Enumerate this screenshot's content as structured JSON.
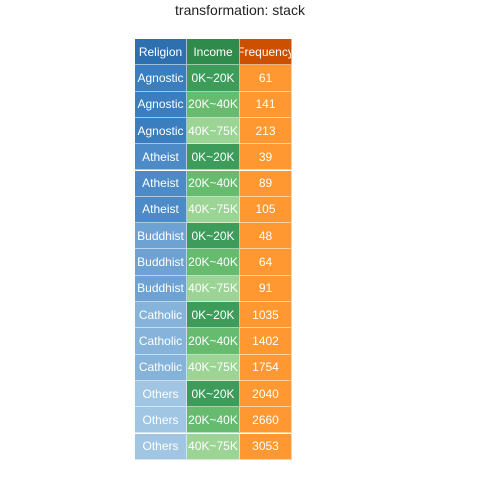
{
  "chart_data": {
    "type": "table",
    "title": "transformation: stack",
    "columns": [
      "Religion",
      "Income",
      "Frequency"
    ],
    "header_colors": [
      "#2e6fb0",
      "#2e8b4c",
      "#cc5000"
    ],
    "rows": [
      {
        "religion": "Agnostic",
        "income": "0K~20K",
        "frequency": "61",
        "religion_color": "#3a7ebf",
        "income_color": "#3d9c5a"
      },
      {
        "religion": "Agnostic",
        "income": "20K~40K",
        "frequency": "141",
        "religion_color": "#3a7ebf",
        "income_color": "#66bb6f"
      },
      {
        "religion": "Agnostic",
        "income": "40K~75K",
        "frequency": "213",
        "religion_color": "#3a7ebf",
        "income_color": "#9bd494"
      },
      {
        "religion": "Atheist",
        "income": "0K~20K",
        "frequency": "39",
        "religion_color": "#4c8bc7",
        "income_color": "#3d9c5a"
      },
      {
        "religion": "Atheist",
        "income": "20K~40K",
        "frequency": "89",
        "religion_color": "#4c8bc7",
        "income_color": "#66bb6f"
      },
      {
        "religion": "Atheist",
        "income": "40K~75K",
        "frequency": "105",
        "religion_color": "#4c8bc7",
        "income_color": "#9bd494"
      },
      {
        "religion": "Buddhist",
        "income": "0K~20K",
        "frequency": "48",
        "religion_color": "#6ea2d2",
        "income_color": "#3d9c5a"
      },
      {
        "religion": "Buddhist",
        "income": "20K~40K",
        "frequency": "64",
        "religion_color": "#6ea2d2",
        "income_color": "#66bb6f"
      },
      {
        "religion": "Buddhist",
        "income": "40K~75K",
        "frequency": "91",
        "religion_color": "#6ea2d2",
        "income_color": "#9bd494"
      },
      {
        "religion": "Catholic",
        "income": "0K~20K",
        "frequency": "1035",
        "religion_color": "#85b3da",
        "income_color": "#3d9c5a"
      },
      {
        "religion": "Catholic",
        "income": "20K~40K",
        "frequency": "1402",
        "religion_color": "#85b3da",
        "income_color": "#66bb6f"
      },
      {
        "religion": "Catholic",
        "income": "40K~75K",
        "frequency": "1754",
        "religion_color": "#85b3da",
        "income_color": "#9bd494"
      },
      {
        "religion": "Others",
        "income": "0K~20K",
        "frequency": "2040",
        "religion_color": "#a0c6e4",
        "income_color": "#3d9c5a"
      },
      {
        "religion": "Others",
        "income": "20K~40K",
        "frequency": "2660",
        "religion_color": "#a0c6e4",
        "income_color": "#66bb6f"
      },
      {
        "religion": "Others",
        "income": "40K~75K",
        "frequency": "3053",
        "religion_color": "#a0c6e4",
        "income_color": "#9bd494"
      }
    ],
    "frequency_color": "#ff9830"
  }
}
